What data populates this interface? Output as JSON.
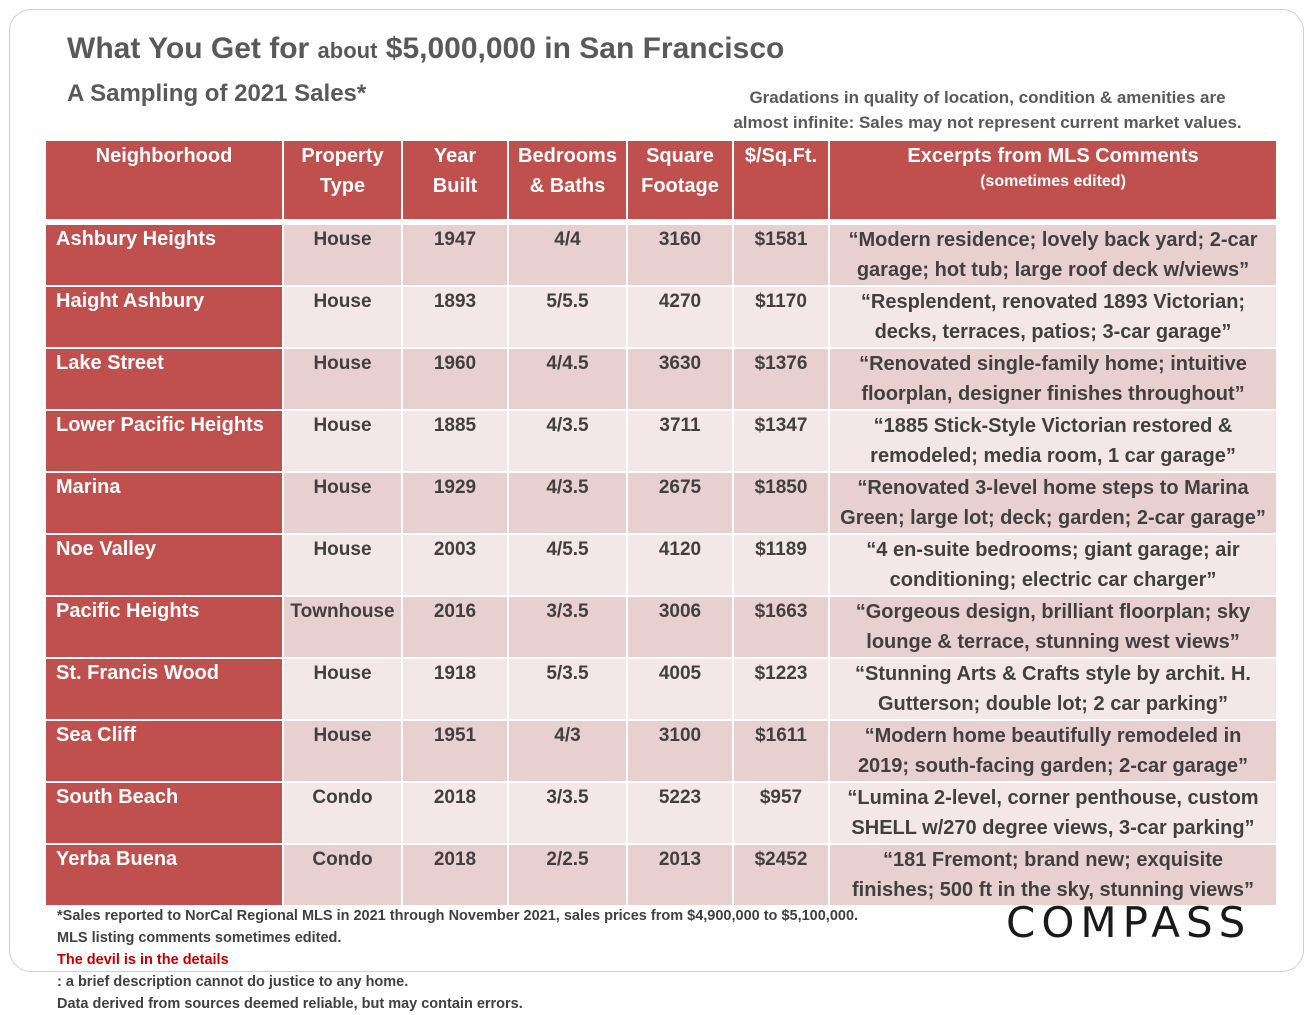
{
  "title": {
    "part1": "What You Get for ",
    "part2": "about",
    "part3": " $5,000,000 in San Francisco"
  },
  "subtitle": "A Sampling of 2021 Sales*",
  "note": {
    "line1": "Gradations in quality of location, condition & amenities are",
    "line2": "almost infinite: Sales may not represent current market values."
  },
  "headers": {
    "neighborhood": "Neighborhood",
    "property_type_1": "Property",
    "property_type_2": "Type",
    "year_built_1": "Year",
    "year_built_2": "Built",
    "bed_bath_1": "Bedrooms",
    "bed_bath_2": "& Baths",
    "sqft_1": "Square",
    "sqft_2": "Footage",
    "price_sqft": "$/Sq.Ft.",
    "comments": "Excerpts from MLS Comments",
    "comments_sub": "(sometimes edited)"
  },
  "rows": [
    {
      "neighborhood": "Ashbury Heights",
      "type": "House",
      "year": "1947",
      "bb": "4/4",
      "sqft": "3160",
      "ppsf": "$1581",
      "comment1": "“Modern residence; lovely back yard; 2-car",
      "comment2": "garage; hot tub; large roof deck w/views”"
    },
    {
      "neighborhood": "Haight Ashbury",
      "type": "House",
      "year": "1893",
      "bb": "5/5.5",
      "sqft": "4270",
      "ppsf": "$1170",
      "comment1": "“Resplendent, renovated 1893 Victorian;",
      "comment2": "decks, terraces, patios; 3-car garage”"
    },
    {
      "neighborhood": "Lake Street",
      "type": "House",
      "year": "1960",
      "bb": "4/4.5",
      "sqft": "3630",
      "ppsf": "$1376",
      "comment1": "“Renovated single-family home; intuitive",
      "comment2": "floorplan, designer finishes throughout”"
    },
    {
      "neighborhood": "Lower Pacific Heights",
      "type": "House",
      "year": "1885",
      "bb": "4/3.5",
      "sqft": "3711",
      "ppsf": "$1347",
      "comment1": "“1885 Stick-Style Victorian restored &",
      "comment2": "remodeled; media room, 1 car garage”"
    },
    {
      "neighborhood": "Marina",
      "type": "House",
      "year": "1929",
      "bb": "4/3.5",
      "sqft": "2675",
      "ppsf": "$1850",
      "comment1": "“Renovated 3-level home steps to Marina",
      "comment2": "Green; large lot; deck; garden; 2-car garage”"
    },
    {
      "neighborhood": "Noe Valley",
      "type": "House",
      "year": "2003",
      "bb": "4/5.5",
      "sqft": "4120",
      "ppsf": "$1189",
      "comment1": "“4 en-suite bedrooms; giant garage; air",
      "comment2": "conditioning; electric car charger”"
    },
    {
      "neighborhood": "Pacific Heights",
      "type": "Townhouse",
      "year": "2016",
      "bb": "3/3.5",
      "sqft": "3006",
      "ppsf": "$1663",
      "comment1": "“Gorgeous design, brilliant floorplan; sky",
      "comment2": "lounge & terrace, stunning west views”"
    },
    {
      "neighborhood": "St. Francis Wood",
      "type": "House",
      "year": "1918",
      "bb": "5/3.5",
      "sqft": "4005",
      "ppsf": "$1223",
      "comment1": "“Stunning Arts & Crafts style by archit. H.",
      "comment2": "Gutterson; double lot; 2 car parking”"
    },
    {
      "neighborhood": "Sea Cliff",
      "type": "House",
      "year": "1951",
      "bb": "4/3",
      "sqft": "3100",
      "ppsf": "$1611",
      "comment1": "“Modern home beautifully remodeled in",
      "comment2": "2019; south-facing garden; 2-car garage”"
    },
    {
      "neighborhood": "South Beach",
      "type": "Condo",
      "year": "2018",
      "bb": "3/3.5",
      "sqft": "5223",
      "ppsf": "$957",
      "comment1": "“Lumina 2-level, corner penthouse, custom",
      "comment2": "SHELL w/270 degree views, 3-car parking”"
    },
    {
      "neighborhood": "Yerba Buena",
      "type": "Condo",
      "year": "2018",
      "bb": "2/2.5",
      "sqft": "2013",
      "ppsf": "$2452",
      "comment1": "“181 Fremont; brand new; exquisite",
      "comment2": "finishes; 500 ft in the sky, stunning views”"
    }
  ],
  "footer": {
    "line1": "*Sales reported to NorCal Regional MLS in 2021 through November 2021, sales prices from $4,900,000 to $5,100,000.",
    "line2a": "MLS listing comments sometimes edited. ",
    "line2_red": "The devil is in the details",
    "line2b": ": a brief description cannot do justice to any home.",
    "line3": "Data derived from sources deemed reliable, but may contain errors."
  },
  "logo": "COMPASS"
}
